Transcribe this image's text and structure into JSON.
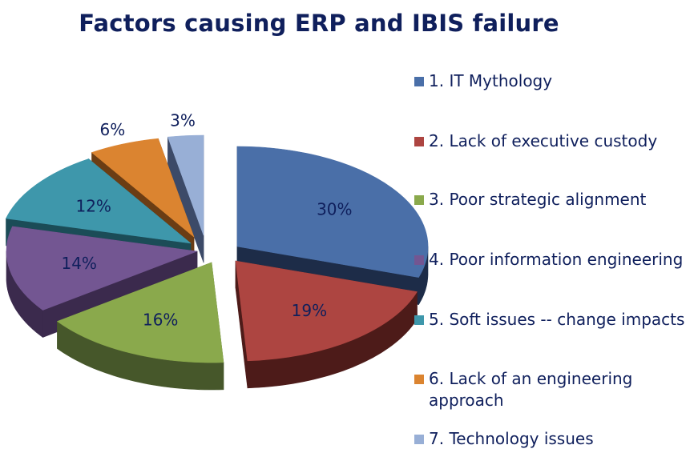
{
  "chart_data": {
    "type": "pie",
    "title": "Factors causing ERP and IBIS failure",
    "legend_position": "right",
    "slices": [
      {
        "label": "1. IT Mythology",
        "value": 30,
        "value_label": "30%",
        "color": "#4a6fa8",
        "dark": "#1d2c48"
      },
      {
        "label": "2. Lack of executive custody",
        "value": 19,
        "value_label": "19%",
        "color": "#ad4541",
        "dark": "#4d1b19"
      },
      {
        "label": "3. Poor strategic alignment",
        "value": 16,
        "value_label": "16%",
        "color": "#8aa94c",
        "dark": "#46572a"
      },
      {
        "label": "4. Poor information engineering",
        "value": 14,
        "value_label": "14%",
        "color": "#735692",
        "dark": "#3b2a4d"
      },
      {
        "label": "5. Soft issues -- change impacts",
        "value": 12,
        "value_label": "12%",
        "color": "#3e97ab",
        "dark": "#1b4c57"
      },
      {
        "label": "6. Lack of an engineering approach",
        "value": 6,
        "value_label": "6%",
        "color": "#db8430",
        "dark": "#6b3d14"
      },
      {
        "label": "7. Technology issues",
        "value": 3,
        "value_label": "3%",
        "color": "#98afd6",
        "dark": "#3c4a68"
      }
    ]
  }
}
